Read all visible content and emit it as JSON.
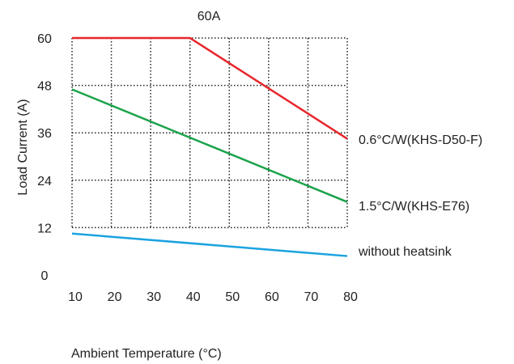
{
  "chart_data": {
    "type": "line",
    "title": "60A",
    "xlabel": "Ambient Temperature (°C)",
    "ylabel": "Load Current (A)",
    "xlim": [
      10,
      80
    ],
    "ylim": [
      0,
      60
    ],
    "x_ticks": [
      10,
      20,
      30,
      40,
      50,
      60,
      70,
      80
    ],
    "y_ticks": [
      0,
      12,
      24,
      36,
      48,
      60
    ],
    "x_tick_labels": [
      "10",
      "20",
      "30",
      "40",
      "50",
      "60",
      "70",
      "80"
    ],
    "y_tick_labels": [
      "0",
      "12",
      "24",
      "36",
      "48",
      "60"
    ],
    "grid": true,
    "grid_style": "dotted",
    "legend": "labels at right end of lines",
    "series": [
      {
        "name": "0.6°C/W(KHS-D50-F)",
        "color": "#e8262c",
        "x": [
          10,
          40,
          80
        ],
        "y": [
          60,
          60,
          34.5
        ]
      },
      {
        "name": "1.5°C/W(KHS-E76)",
        "color": "#1aa34a",
        "x": [
          10,
          80
        ],
        "y": [
          47,
          18.5
        ]
      },
      {
        "name": "without heatsink",
        "color": "#1aa3e0",
        "x": [
          10,
          80
        ],
        "y": [
          10.5,
          4.8
        ]
      }
    ]
  }
}
